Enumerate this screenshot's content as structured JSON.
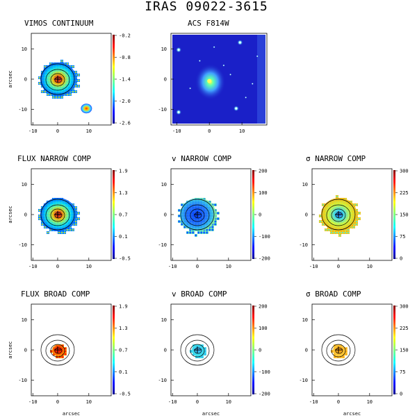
{
  "figure": {
    "title": "IRAS 09022-3615",
    "axis_label": "arcsec",
    "panels": [
      {
        "id": "vimos-continuum",
        "title": "VIMOS CONTINUUM",
        "kind": "map",
        "xticks": [
          "-10",
          "0",
          "10"
        ],
        "yticks": [
          "10",
          "0",
          "-10"
        ],
        "colorbar": [
          "-0.2",
          "-0.8",
          "-1.4",
          "-2.0",
          "-2.6"
        ],
        "show_xlabel": false,
        "show_ylabel": true,
        "cross": true
      },
      {
        "id": "acs-f814w",
        "title": "ACS F814W",
        "kind": "image",
        "xticks": [
          "-10",
          "0",
          "10"
        ],
        "yticks": [
          "10",
          "0",
          "-10"
        ],
        "colorbar": [],
        "show_xlabel": false,
        "show_ylabel": false,
        "cross": false
      },
      {
        "id": "flux-narrow",
        "title": "FLUX NARROW COMP",
        "kind": "map",
        "xticks": [
          "-10",
          "0",
          "10"
        ],
        "yticks": [
          "10",
          "0",
          "-10"
        ],
        "colorbar": [
          "1.9",
          "1.3",
          "0.7",
          "0.1",
          "-0.5"
        ],
        "show_xlabel": false,
        "show_ylabel": true,
        "cross": true
      },
      {
        "id": "v-narrow",
        "title": "v NARROW COMP",
        "kind": "map",
        "xticks": [
          "-10",
          "0",
          "10"
        ],
        "yticks": [
          "10",
          "0",
          "-10"
        ],
        "colorbar": [
          "200",
          "100",
          "0",
          "-100",
          "-200"
        ],
        "show_xlabel": false,
        "show_ylabel": false,
        "cross": true
      },
      {
        "id": "sigma-narrow",
        "title": "σ NARROW COMP",
        "kind": "map",
        "xticks": [
          "-10",
          "0",
          "10"
        ],
        "yticks": [
          "10",
          "0",
          "-10"
        ],
        "colorbar": [
          "300",
          "225",
          "150",
          "75",
          "0"
        ],
        "show_xlabel": false,
        "show_ylabel": false,
        "cross": true
      },
      {
        "id": "flux-broad",
        "title": "FLUX BROAD COMP",
        "kind": "map",
        "xticks": [
          "-10",
          "0",
          "10"
        ],
        "yticks": [
          "10",
          "0",
          "-10"
        ],
        "colorbar": [
          "1.9",
          "1.3",
          "0.7",
          "0.1",
          "-0.5"
        ],
        "show_xlabel": true,
        "show_ylabel": true,
        "cross": true
      },
      {
        "id": "v-broad",
        "title": "v BROAD COMP",
        "kind": "map",
        "xticks": [
          "-10",
          "0",
          "10"
        ],
        "yticks": [
          "10",
          "0",
          "-10"
        ],
        "colorbar": [
          "200",
          "100",
          "0",
          "-100",
          "-200"
        ],
        "show_xlabel": true,
        "show_ylabel": false,
        "cross": true
      },
      {
        "id": "sigma-broad",
        "title": "σ BROAD COMP",
        "kind": "map",
        "xticks": [
          "-10",
          "0",
          "10"
        ],
        "yticks": [
          "10",
          "0",
          "-10"
        ],
        "colorbar": [
          "300",
          "225",
          "150",
          "75",
          "0"
        ],
        "show_xlabel": true,
        "show_ylabel": false,
        "cross": true
      }
    ],
    "colors": {
      "frame": "#000000",
      "image_bg": "#1a20c8",
      "star": "#ffffff"
    }
  }
}
